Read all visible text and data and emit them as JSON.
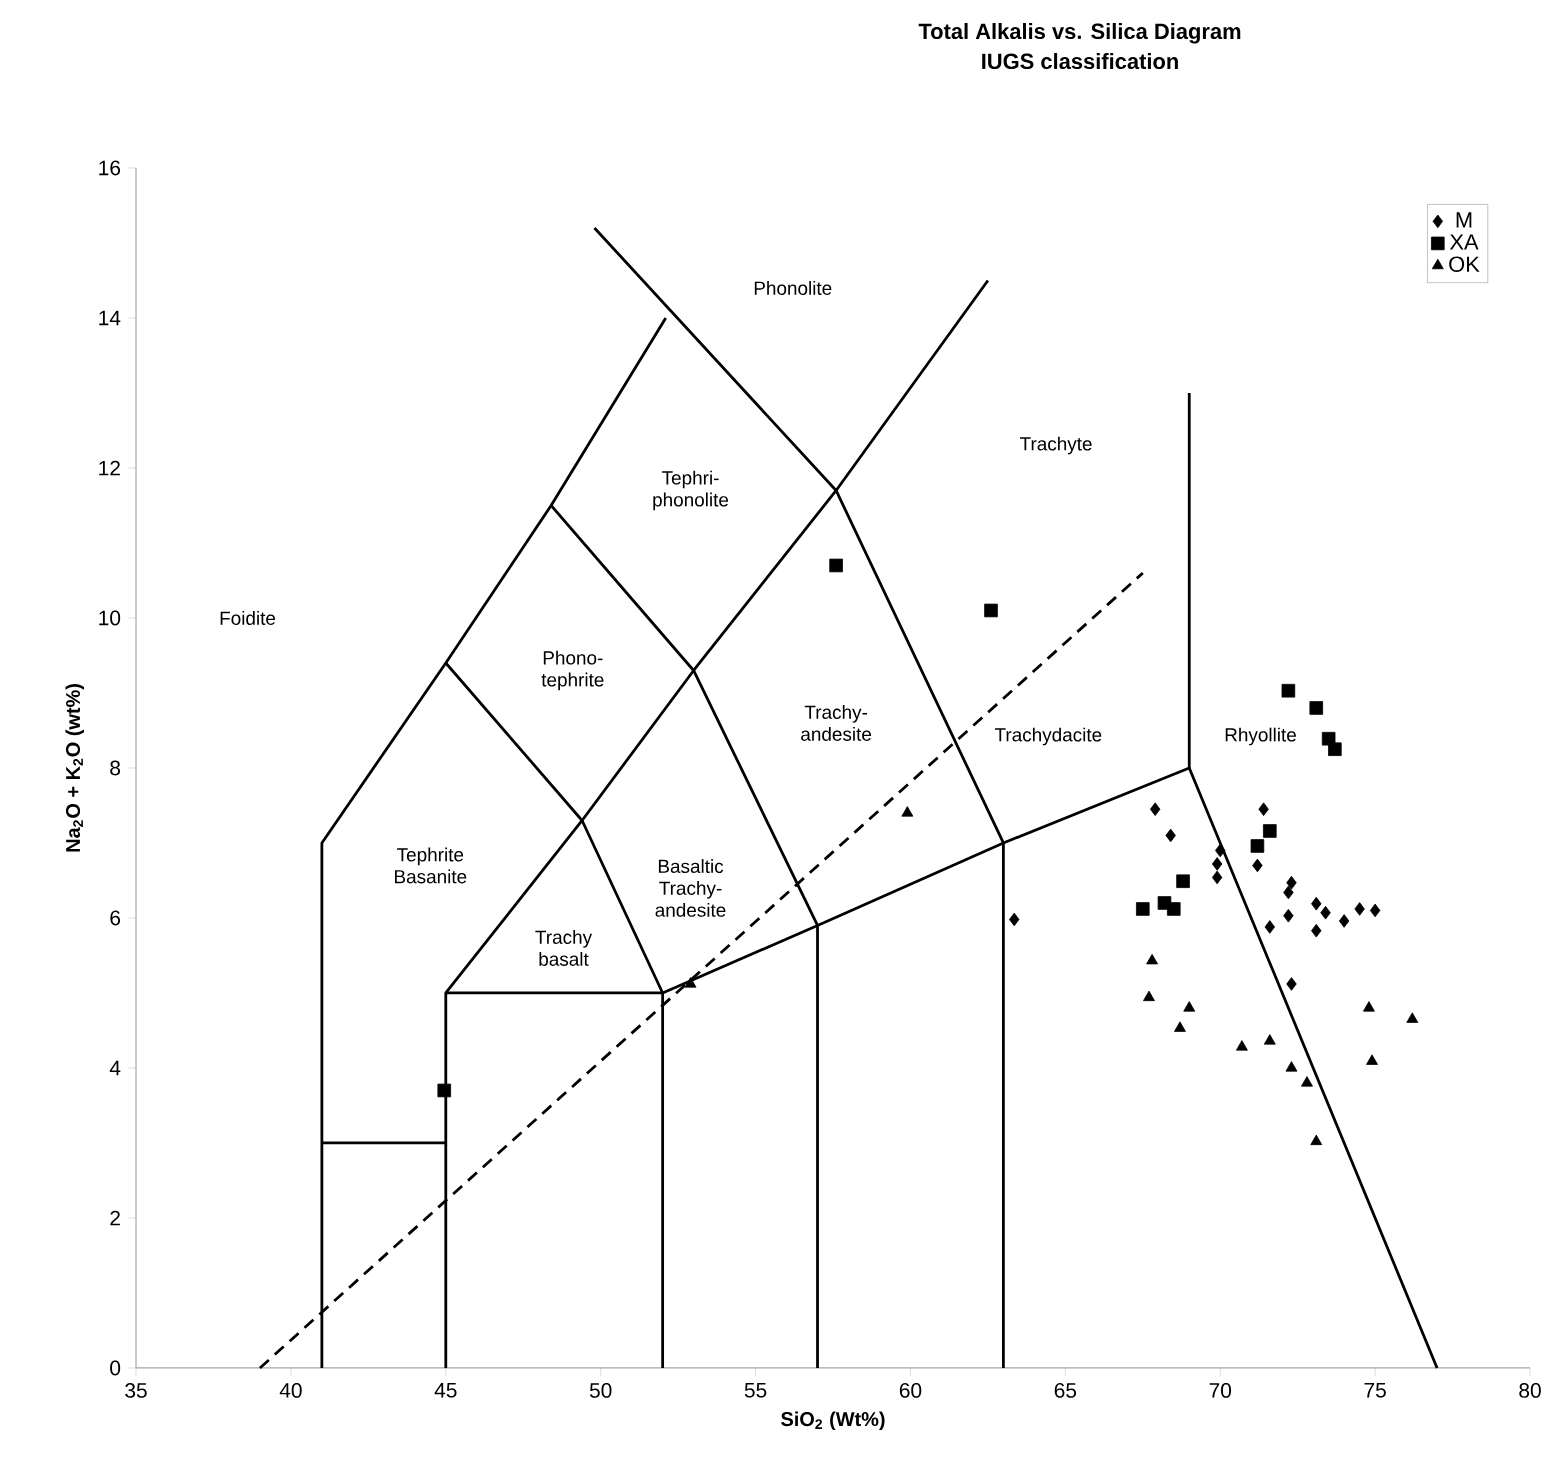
{
  "chart_data": {
    "type": "scatter",
    "title": "Total Alkalis vs. Silica Diagram",
    "subtitle": "IUGS classification",
    "xlabel": "SiO$_{2}$ (Wt%)",
    "ylabel": "Na$_{2}$O + K$_{2}$O (wt%)",
    "xlim": [
      35,
      80
    ],
    "xticks": [
      35,
      40,
      45,
      50,
      55,
      60,
      65,
      70,
      75,
      80
    ],
    "ylim": [
      0,
      16
    ],
    "yticks": [
      0,
      2,
      4,
      6,
      8,
      10,
      12,
      14,
      16
    ],
    "legend": "top right",
    "series": [
      {
        "name": "M",
        "marker": "diamond",
        "color": "#000000",
        "x": [
          67.9,
          68.4,
          63.35,
          70.0,
          69.9,
          69.9,
          71.4,
          71.2,
          72.3,
          72.2,
          73.1,
          73.4,
          72.2,
          71.6,
          73.1,
          74.0,
          74.5,
          75.0,
          72.3
        ],
        "values": [
          7.45,
          7.1,
          5.98,
          6.9,
          6.72,
          6.54,
          7.45,
          6.7,
          6.47,
          6.34,
          6.19,
          6.07,
          6.03,
          5.88,
          5.83,
          5.96,
          6.12,
          6.1,
          5.12
        ]
      },
      {
        "name": "XA",
        "marker": "square",
        "color": "#000000",
        "x": [
          72.2,
          73.1,
          73.5,
          73.7,
          71.6,
          71.2,
          68.8,
          67.5,
          68.2,
          68.5,
          44.95,
          57.6,
          62.6
        ],
        "values": [
          9.03,
          8.8,
          8.39,
          8.25,
          7.16,
          6.96,
          6.49,
          6.12,
          6.2,
          6.12,
          3.7,
          10.7,
          10.1
        ]
      },
      {
        "name": "OK",
        "marker": "triangle",
        "color": "#000000",
        "x": [
          67.8,
          67.7,
          69.0,
          68.7,
          70.7,
          71.6,
          72.3,
          72.8,
          73.1,
          74.8,
          76.2,
          74.9,
          59.9,
          52.9
        ],
        "values": [
          5.43,
          4.94,
          4.8,
          4.53,
          4.28,
          4.36,
          4.0,
          3.8,
          3.02,
          4.8,
          4.65,
          4.09,
          7.4,
          5.12
        ]
      },
      {
        "type": "line",
        "marker": "none",
        "line_style": "solid",
        "color": "#000000",
        "x": [
          41,
          41,
          45,
          48.4,
          52.1
        ],
        "values": [
          0,
          7,
          9.4,
          11.5,
          14
        ]
      },
      {
        "type": "line",
        "marker": "none",
        "line_style": "solid",
        "color": "#000000",
        "x": [
          41,
          45
        ],
        "values": [
          3,
          3
        ]
      },
      {
        "type": "line",
        "marker": "none",
        "line_style": "solid",
        "color": "#000000",
        "x": [
          45,
          45,
          49.4,
          53,
          57.6,
          62.5
        ],
        "values": [
          0,
          5,
          7.3,
          9.3,
          11.7,
          14.5
        ]
      },
      {
        "type": "line",
        "marker": "none",
        "line_style": "solid",
        "color": "#000000",
        "x": [
          45,
          52,
          57,
          63,
          69,
          77
        ],
        "values": [
          5,
          5,
          5.9,
          7,
          8,
          0
        ]
      },
      {
        "type": "line",
        "marker": "none",
        "line_style": "solid",
        "color": "#000000",
        "x": [
          52,
          52,
          49.4,
          45
        ],
        "values": [
          0,
          5,
          7.3,
          9.4
        ]
      },
      {
        "type": "line",
        "marker": "none",
        "line_style": "solid",
        "color": "#000000",
        "x": [
          57,
          57,
          53,
          48.4
        ],
        "values": [
          0,
          5.9,
          9.3,
          11.5
        ]
      },
      {
        "type": "line",
        "marker": "none",
        "line_style": "solid",
        "color": "#000000",
        "x": [
          63,
          63,
          57.6,
          49.8
        ],
        "values": [
          0,
          7,
          11.7,
          15.2
        ]
      },
      {
        "type": "line",
        "marker": "none",
        "line_style": "solid",
        "color": "#000000",
        "x": [
          69,
          69
        ],
        "values": [
          8,
          13
        ]
      },
      {
        "type": "line",
        "marker": "none",
        "line_style": "dashed",
        "color": "#000000",
        "x": [
          39,
          67.5
        ],
        "values": [
          0,
          10.6
        ]
      }
    ],
    "annotations": [
      "Foidite",
      "Phonolite",
      "Tephri-phonolite",
      "Phono-tephrite",
      "Tephrite Basanite",
      "Trachy basalt",
      "Basaltic Trachy-andesite",
      "Trachy-andesite",
      "Trachydacite",
      "Trachyte",
      "Rhyollite"
    ]
  }
}
